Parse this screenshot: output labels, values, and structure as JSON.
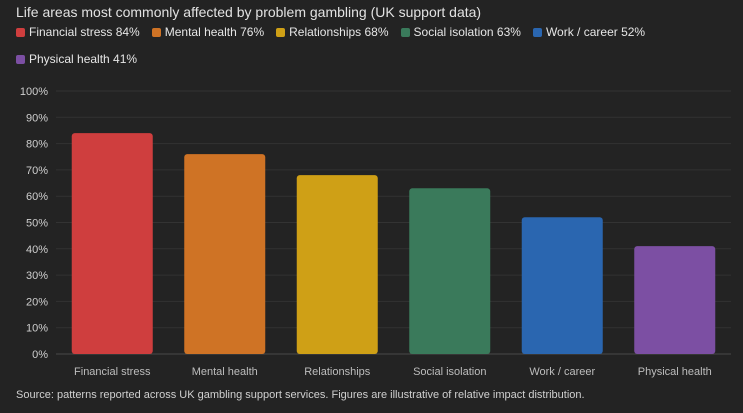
{
  "chart_data": {
    "type": "bar",
    "title": "Life areas most commonly affected by problem gambling (UK support data)",
    "categories": [
      "Financial stress",
      "Mental health",
      "Relationships",
      "Social isolation",
      "Work / career",
      "Physical health"
    ],
    "values": [
      84,
      76,
      68,
      63,
      52,
      41
    ],
    "colors": [
      "#cf3e3e",
      "#cf7325",
      "#cfa016",
      "#3a7a5b",
      "#2a66b0",
      "#7c4fa3"
    ],
    "legend": [
      {
        "label": "Financial stress 84%",
        "color": "#cf3e3e"
      },
      {
        "label": "Mental health 76%",
        "color": "#cf7325"
      },
      {
        "label": "Relationships 68%",
        "color": "#cfa016"
      },
      {
        "label": "Social isolation 63%",
        "color": "#3a7a5b"
      },
      {
        "label": "Work / career 52%",
        "color": "#2a66b0"
      },
      {
        "label": "Physical health 41%",
        "color": "#7c4fa3"
      }
    ],
    "yticks": [
      "0%",
      "10%",
      "20%",
      "30%",
      "40%",
      "50%",
      "60%",
      "70%",
      "80%",
      "90%",
      "100%"
    ],
    "ylim": [
      0,
      100
    ],
    "xlabel": "",
    "ylabel": "",
    "grid": true,
    "legend_position": "top"
  },
  "source_note": "Source: patterns reported across UK gambling support services. Figures are illustrative of relative impact distribution."
}
